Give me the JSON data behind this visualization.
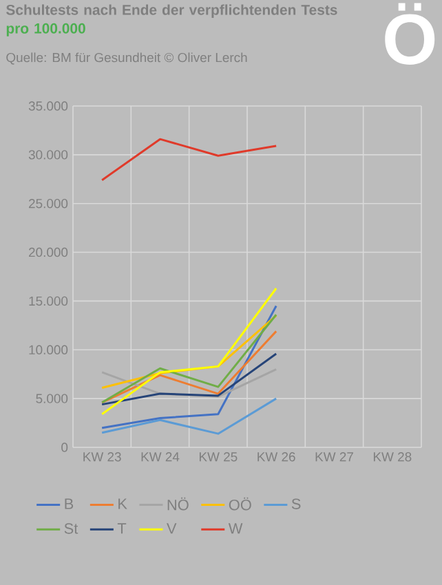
{
  "chart_data": {
    "type": "line",
    "title": "Schultests nach Ende der verpflichtenden Tests",
    "subtitle": "pro 100.000",
    "annotations": [
      "Quelle:  BM  für Gesundheit  © Oliver Lerch",
      "Ö"
    ],
    "categories": [
      "KW 23",
      "KW 24",
      "KW 25",
      "KW 26",
      "KW 27",
      "KW 28"
    ],
    "series": [
      {
        "name": "B",
        "color": "#4472c4",
        "values": [
          2000,
          3000,
          3400,
          14500,
          null,
          null
        ]
      },
      {
        "name": "K",
        "color": "#ed7d31",
        "values": [
          4600,
          7400,
          5500,
          11900,
          null,
          null
        ]
      },
      {
        "name": "NÖ",
        "color": "#a5a5a5",
        "values": [
          7700,
          5500,
          5200,
          8000,
          null,
          null
        ]
      },
      {
        "name": "OÖ",
        "color": "#ffc000",
        "values": [
          6100,
          7600,
          8300,
          13500,
          null,
          null
        ]
      },
      {
        "name": "S",
        "color": "#5b9bd5",
        "values": [
          1500,
          2800,
          1400,
          5000,
          null,
          null
        ]
      },
      {
        "name": "St",
        "color": "#70ad47",
        "values": [
          4600,
          8100,
          6200,
          13600,
          null,
          null
        ]
      },
      {
        "name": "T",
        "color": "#264478",
        "values": [
          4400,
          5500,
          5300,
          9600,
          null,
          null
        ]
      },
      {
        "name": "V",
        "color": "#ffff00",
        "values": [
          3400,
          7700,
          8300,
          16300,
          null,
          null
        ]
      },
      {
        "name": "W",
        "color": "#e03a2a",
        "values": [
          27400,
          31600,
          29900,
          30900,
          null,
          null
        ]
      }
    ],
    "ylim": [
      0,
      35000
    ],
    "yticks": [
      0,
      {
        "value": 5000,
        "label": "5.000"
      },
      {
        "value": 10000,
        "label": "10.000"
      },
      {
        "value": 15000,
        "label": "15.000"
      },
      {
        "value": 20000,
        "label": "20.000"
      },
      {
        "value": 25000,
        "label": "25.000"
      },
      {
        "value": 30000,
        "label": "30.000"
      },
      {
        "value": 35000,
        "label": "35.000"
      }
    ],
    "grid": true,
    "legend": "bottom",
    "marker": "none",
    "line_style": "solid"
  }
}
